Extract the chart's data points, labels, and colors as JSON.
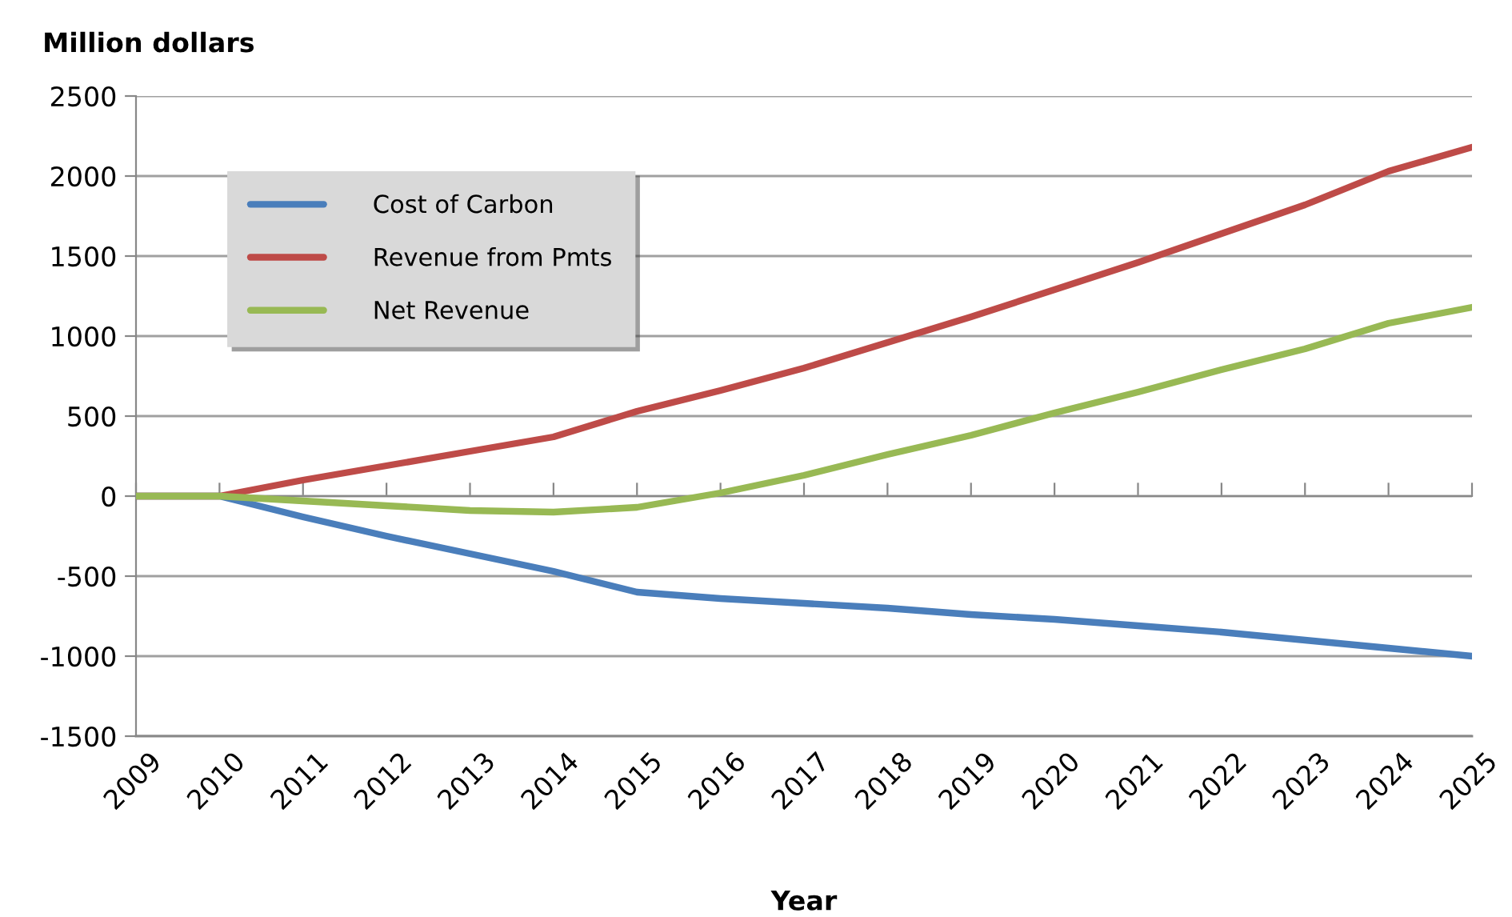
{
  "chart_data": {
    "type": "line",
    "ylabel": "Million dollars",
    "xlabel": "Year",
    "categories": [
      "2009",
      "2010",
      "2011",
      "2012",
      "2013",
      "2014",
      "2015",
      "2016",
      "2017",
      "2018",
      "2019",
      "2020",
      "2021",
      "2022",
      "2023",
      "2024",
      "2025"
    ],
    "series": [
      {
        "name": "Cost of Carbon",
        "color": "#4a7ebb",
        "values": [
          0,
          0,
          -130,
          -250,
          -360,
          -470,
          -600,
          -640,
          -670,
          -700,
          -740,
          -770,
          -810,
          -850,
          -900,
          -950,
          -1000
        ]
      },
      {
        "name": "Revenue from Pmts",
        "color": "#be4b48",
        "values": [
          0,
          0,
          100,
          190,
          280,
          370,
          530,
          660,
          800,
          960,
          1120,
          1290,
          1460,
          1640,
          1820,
          2030,
          2180
        ]
      },
      {
        "name": "Net Revenue",
        "color": "#98b954",
        "values": [
          0,
          0,
          -30,
          -60,
          -90,
          -100,
          -70,
          20,
          130,
          260,
          380,
          520,
          650,
          790,
          920,
          1080,
          1180
        ]
      }
    ],
    "ylim": [
      -1500,
      2500
    ],
    "yticks": [
      -1500,
      -1000,
      -500,
      0,
      500,
      1000,
      1500,
      2000,
      2500
    ],
    "grid": "y",
    "legend": "top left",
    "marker": "none",
    "line_style": "solid"
  }
}
